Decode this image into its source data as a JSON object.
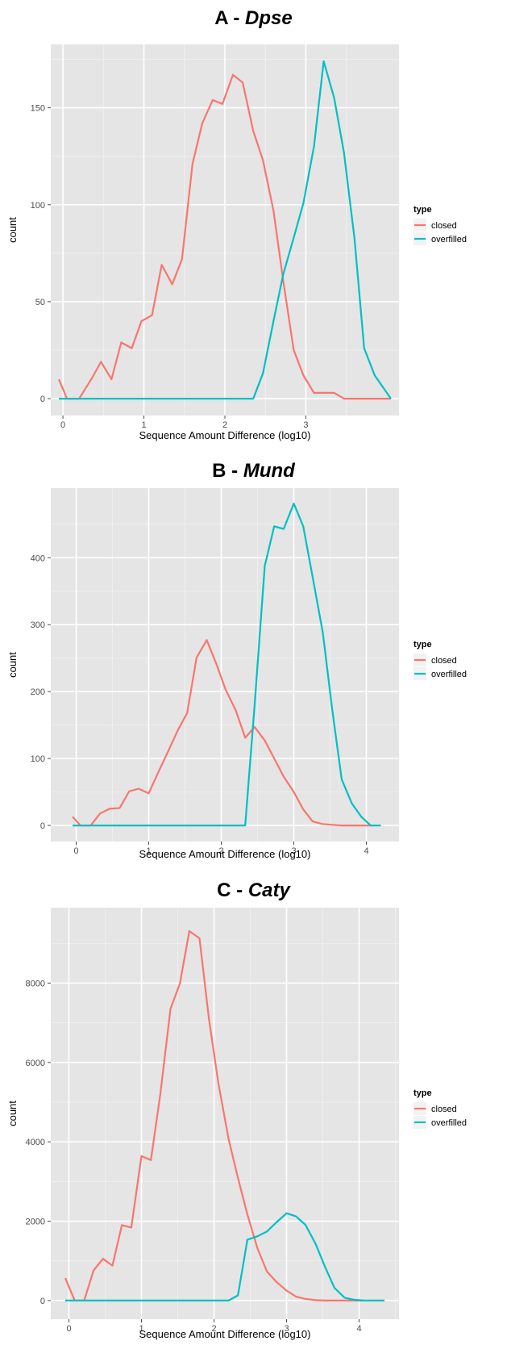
{
  "chart_data": [
    {
      "type": "line",
      "title_prefix": "A - ",
      "title_species": "Dpse",
      "xlabel": "Sequence Amount Difference (log10)",
      "ylabel": "count",
      "xlim": [
        -0.15,
        4.15
      ],
      "ylim": [
        -8.7,
        182.7
      ],
      "x_ticks": [
        0,
        1,
        2,
        3
      ],
      "x_tick_labels": [
        "0",
        "1",
        "2",
        "3"
      ],
      "y_ticks": [
        0,
        50,
        100,
        150
      ],
      "y_tick_labels": [
        "0",
        "50",
        "100",
        "150"
      ],
      "legend": {
        "title": "type",
        "position": "right",
        "entries": [
          "closed",
          "overfilled"
        ]
      },
      "grid": true,
      "series": [
        {
          "name": "closed",
          "color": "#F8766D",
          "points": [
            [
              -0.05,
              10
            ],
            [
              0.05,
              0
            ],
            [
              0.2,
              0
            ],
            [
              0.35,
              10
            ],
            [
              0.47,
              19
            ],
            [
              0.6,
              10
            ],
            [
              0.72,
              29
            ],
            [
              0.85,
              26
            ],
            [
              0.97,
              40
            ],
            [
              1.1,
              43
            ],
            [
              1.22,
              69
            ],
            [
              1.35,
              59
            ],
            [
              1.47,
              72
            ],
            [
              1.6,
              121
            ],
            [
              1.72,
              142
            ],
            [
              1.85,
              154
            ],
            [
              1.97,
              152
            ],
            [
              2.1,
              167
            ],
            [
              2.22,
              163
            ],
            [
              2.35,
              138
            ],
            [
              2.47,
              123
            ],
            [
              2.6,
              97
            ],
            [
              2.72,
              61
            ],
            [
              2.85,
              25
            ],
            [
              2.97,
              12
            ],
            [
              3.1,
              3
            ],
            [
              3.22,
              3
            ],
            [
              3.35,
              3
            ],
            [
              3.47,
              0
            ],
            [
              3.6,
              0
            ],
            [
              3.72,
              0
            ],
            [
              3.85,
              0
            ],
            [
              4.05,
              0
            ]
          ]
        },
        {
          "name": "overfilled",
          "color": "#00BFC4",
          "points": [
            [
              -0.05,
              0
            ],
            [
              2.35,
              0
            ],
            [
              2.47,
              13
            ],
            [
              2.6,
              40
            ],
            [
              2.72,
              64
            ],
            [
              2.85,
              83
            ],
            [
              2.97,
              101
            ],
            [
              3.1,
              130
            ],
            [
              3.22,
              174
            ],
            [
              3.35,
              155
            ],
            [
              3.47,
              127
            ],
            [
              3.6,
              83
            ],
            [
              3.72,
              26
            ],
            [
              3.85,
              12
            ],
            [
              4.05,
              0
            ]
          ]
        }
      ]
    },
    {
      "type": "line",
      "title_prefix": "B - ",
      "title_species": "Mund",
      "xlabel": "Sequence Amount Difference (log10)",
      "ylabel": "count",
      "xlim": [
        -0.35,
        4.45
      ],
      "ylim": [
        -24,
        504
      ],
      "x_ticks": [
        0,
        1,
        2,
        3,
        4
      ],
      "x_tick_labels": [
        "0",
        "1",
        "2",
        "3",
        "4"
      ],
      "y_ticks": [
        0,
        100,
        200,
        300,
        400
      ],
      "y_tick_labels": [
        "0",
        "100",
        "200",
        "300",
        "400"
      ],
      "legend": {
        "title": "type",
        "position": "right",
        "entries": [
          "closed",
          "overfilled"
        ]
      },
      "grid": true,
      "series": [
        {
          "name": "closed",
          "color": "#F8766D",
          "points": [
            [
              -0.05,
              13
            ],
            [
              0.06,
              0
            ],
            [
              0.2,
              0
            ],
            [
              0.33,
              18
            ],
            [
              0.46,
              25
            ],
            [
              0.6,
              26
            ],
            [
              0.73,
              51
            ],
            [
              0.86,
              55
            ],
            [
              1.0,
              48
            ],
            [
              1.13,
              79
            ],
            [
              1.26,
              109
            ],
            [
              1.4,
              142
            ],
            [
              1.53,
              168
            ],
            [
              1.66,
              251
            ],
            [
              1.8,
              277
            ],
            [
              1.93,
              242
            ],
            [
              2.06,
              203
            ],
            [
              2.2,
              172
            ],
            [
              2.33,
              131
            ],
            [
              2.46,
              147
            ],
            [
              2.6,
              127
            ],
            [
              2.73,
              100
            ],
            [
              2.86,
              73
            ],
            [
              3.0,
              50
            ],
            [
              3.13,
              24
            ],
            [
              3.26,
              6
            ],
            [
              3.4,
              2
            ],
            [
              3.53,
              1
            ],
            [
              3.66,
              0
            ],
            [
              3.8,
              0
            ],
            [
              3.93,
              0
            ],
            [
              4.06,
              0
            ]
          ]
        },
        {
          "name": "overfilled",
          "color": "#00BFC4",
          "points": [
            [
              -0.05,
              0
            ],
            [
              2.33,
              0
            ],
            [
              2.46,
              180
            ],
            [
              2.6,
              388
            ],
            [
              2.73,
              447
            ],
            [
              2.86,
              443
            ],
            [
              3.0,
              481
            ],
            [
              3.13,
              447
            ],
            [
              3.26,
              371
            ],
            [
              3.4,
              288
            ],
            [
              3.53,
              173
            ],
            [
              3.66,
              69
            ],
            [
              3.8,
              33
            ],
            [
              3.93,
              13
            ],
            [
              4.06,
              0
            ],
            [
              4.2,
              0
            ]
          ]
        }
      ]
    },
    {
      "type": "line",
      "title_prefix": "C - ",
      "title_species": "Caty",
      "xlabel": "Sequence Amount Difference (log10)",
      "ylabel": "count",
      "xlim": [
        -0.25,
        4.55
      ],
      "ylim": [
        -470,
        9900
      ],
      "x_ticks": [
        0,
        1,
        2,
        3,
        4
      ],
      "x_tick_labels": [
        "0",
        "1",
        "2",
        "3",
        "4"
      ],
      "y_ticks": [
        0,
        2000,
        4000,
        6000,
        8000
      ],
      "y_tick_labels": [
        "0",
        "2000",
        "4000",
        "6000",
        "8000"
      ],
      "legend": {
        "title": "type",
        "position": "right",
        "entries": [
          "closed",
          "overfilled"
        ]
      },
      "grid": true,
      "series": [
        {
          "name": "closed",
          "color": "#F8766D",
          "points": [
            [
              -0.05,
              570
            ],
            [
              0.08,
              0
            ],
            [
              0.21,
              0
            ],
            [
              0.34,
              760
            ],
            [
              0.47,
              1050
            ],
            [
              0.6,
              880
            ],
            [
              0.73,
              1900
            ],
            [
              0.86,
              1840
            ],
            [
              1.0,
              3640
            ],
            [
              1.13,
              3540
            ],
            [
              1.26,
              5200
            ],
            [
              1.4,
              7350
            ],
            [
              1.53,
              7990
            ],
            [
              1.66,
              9310
            ],
            [
              1.8,
              9130
            ],
            [
              1.93,
              7100
            ],
            [
              2.06,
              5480
            ],
            [
              2.2,
              4080
            ],
            [
              2.33,
              3090
            ],
            [
              2.46,
              2170
            ],
            [
              2.6,
              1310
            ],
            [
              2.73,
              730
            ],
            [
              2.86,
              470
            ],
            [
              3.0,
              250
            ],
            [
              3.13,
              100
            ],
            [
              3.26,
              40
            ],
            [
              3.4,
              10
            ],
            [
              3.53,
              0
            ],
            [
              3.66,
              0
            ],
            [
              3.8,
              0
            ],
            [
              3.93,
              0
            ],
            [
              4.06,
              0
            ]
          ]
        },
        {
          "name": "overfilled",
          "color": "#00BFC4",
          "points": [
            [
              -0.05,
              0
            ],
            [
              2.2,
              0
            ],
            [
              2.33,
              130
            ],
            [
              2.46,
              1530
            ],
            [
              2.6,
              1620
            ],
            [
              2.73,
              1740
            ],
            [
              2.86,
              1970
            ],
            [
              3.0,
              2200
            ],
            [
              3.13,
              2120
            ],
            [
              3.26,
              1910
            ],
            [
              3.4,
              1430
            ],
            [
              3.53,
              850
            ],
            [
              3.66,
              320
            ],
            [
              3.8,
              70
            ],
            [
              3.93,
              20
            ],
            [
              4.06,
              0
            ],
            [
              4.2,
              0
            ],
            [
              4.35,
              0
            ]
          ]
        }
      ]
    }
  ]
}
